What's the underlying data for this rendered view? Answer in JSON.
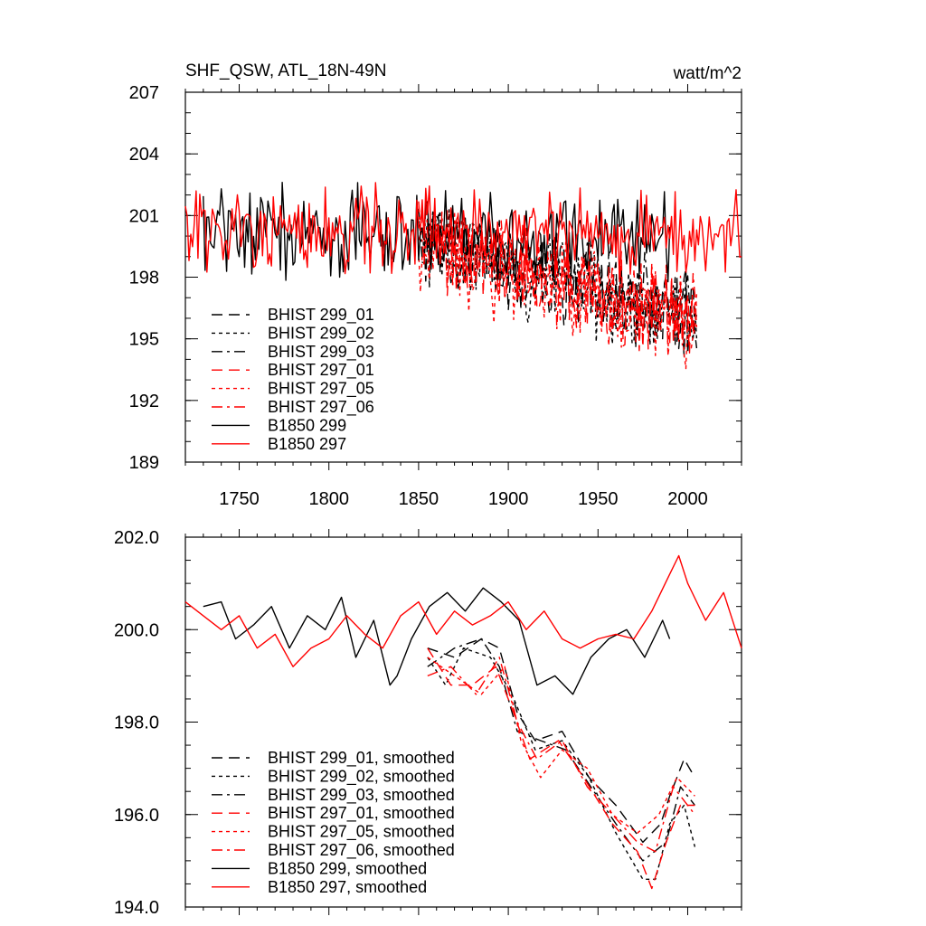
{
  "chart_data": [
    {
      "type": "line",
      "title_left": "SHF_QSW, ATL_18N-49N",
      "title_right": "watt/m^2",
      "xlim": [
        1720,
        2030
      ],
      "ylim": [
        189,
        207
      ],
      "x_ticks": [
        1750,
        1800,
        1850,
        1900,
        1950,
        2000
      ],
      "y_ticks": [
        189,
        192,
        195,
        198,
        201,
        204,
        207
      ],
      "y_tick_labels": [
        "189",
        "192",
        "195",
        "198",
        "201",
        "204",
        "207"
      ],
      "legend_position": "lower-left",
      "series": [
        {
          "name": "BHIST 299_01",
          "color": "#000000",
          "dash": "longdash",
          "x_start": 1850,
          "x_end": 2005,
          "mean_start": 199.8,
          "mean_end": 196.0,
          "amplitude": 2.2
        },
        {
          "name": "BHIST 299_02",
          "color": "#000000",
          "dash": "shortdash",
          "x_start": 1850,
          "x_end": 2005,
          "mean_start": 199.6,
          "mean_end": 195.8,
          "amplitude": 2.3
        },
        {
          "name": "BHIST 299_03",
          "color": "#000000",
          "dash": "dashdot",
          "x_start": 1850,
          "x_end": 2005,
          "mean_start": 199.9,
          "mean_end": 196.2,
          "amplitude": 2.1
        },
        {
          "name": "BHIST 297_01",
          "color": "#ff0000",
          "dash": "longdash",
          "x_start": 1850,
          "x_end": 2005,
          "mean_start": 199.5,
          "mean_end": 195.9,
          "amplitude": 2.3
        },
        {
          "name": "BHIST 297_05",
          "color": "#ff0000",
          "dash": "shortdash",
          "x_start": 1850,
          "x_end": 2005,
          "mean_start": 199.4,
          "mean_end": 195.7,
          "amplitude": 2.4
        },
        {
          "name": "BHIST 297_06",
          "color": "#ff0000",
          "dash": "dashdot",
          "x_start": 1850,
          "x_end": 2005,
          "mean_start": 199.7,
          "mean_end": 196.0,
          "amplitude": 2.2
        },
        {
          "name": "B1850 299",
          "color": "#000000",
          "dash": "solid",
          "x_start": 1730,
          "x_end": 1990,
          "mean_start": 200.3,
          "mean_end": 199.9,
          "amplitude": 2.3
        },
        {
          "name": "B1850 297",
          "color": "#ff0000",
          "dash": "solid",
          "x_start": 1720,
          "x_end": 2030,
          "mean_start": 200.3,
          "mean_end": 200.2,
          "amplitude": 2.2
        }
      ]
    },
    {
      "type": "line",
      "xlim": [
        1720,
        2030
      ],
      "ylim": [
        194,
        202
      ],
      "x_ticks": [
        1750,
        1800,
        1850,
        1900,
        1950,
        2000
      ],
      "y_ticks": [
        194,
        196,
        198,
        200,
        202
      ],
      "y_tick_labels": [
        "194.0",
        "196.0",
        "198.0",
        "200.0",
        "202.0"
      ],
      "legend_position": "lower-left",
      "series": [
        {
          "name": "BHIST 299_01, smoothed",
          "color": "#000000",
          "dash": "longdash",
          "points": [
            [
              1855,
              199.6
            ],
            [
              1870,
              199.4
            ],
            [
              1885,
              199.8
            ],
            [
              1895,
              199.6
            ],
            [
              1905,
              198.2
            ],
            [
              1915,
              197.6
            ],
            [
              1930,
              197.8
            ],
            [
              1945,
              196.8
            ],
            [
              1960,
              196.2
            ],
            [
              1975,
              195.4
            ],
            [
              1985,
              195.8
            ],
            [
              1990,
              196.4
            ],
            [
              1998,
              197.2
            ],
            [
              2004,
              196.8
            ]
          ]
        },
        {
          "name": "BHIST 299_02, smoothed",
          "color": "#000000",
          "dash": "shortdash",
          "points": [
            [
              1855,
              199.4
            ],
            [
              1865,
              198.8
            ],
            [
              1875,
              199.6
            ],
            [
              1890,
              199.4
            ],
            [
              1902,
              198.6
            ],
            [
              1915,
              197.4
            ],
            [
              1930,
              197.6
            ],
            [
              1945,
              196.8
            ],
            [
              1960,
              195.6
            ],
            [
              1975,
              194.6
            ],
            [
              1982,
              194.6
            ],
            [
              1990,
              195.8
            ],
            [
              1998,
              196.2
            ],
            [
              2004,
              195.3
            ]
          ]
        },
        {
          "name": "BHIST 299_03, smoothed",
          "color": "#000000",
          "dash": "dashdot",
          "points": [
            [
              1855,
              199.2
            ],
            [
              1870,
              199.6
            ],
            [
              1885,
              199.8
            ],
            [
              1895,
              199.2
            ],
            [
              1905,
              197.8
            ],
            [
              1918,
              197.6
            ],
            [
              1932,
              197.4
            ],
            [
              1946,
              196.6
            ],
            [
              1960,
              195.8
            ],
            [
              1975,
              195.0
            ],
            [
              1988,
              195.4
            ],
            [
              1996,
              196.6
            ],
            [
              2004,
              196.2
            ]
          ]
        },
        {
          "name": "BHIST 297_01, smoothed",
          "color": "#ff0000",
          "dash": "longdash",
          "points": [
            [
              1855,
              199.6
            ],
            [
              1868,
              198.8
            ],
            [
              1880,
              198.8
            ],
            [
              1893,
              199.2
            ],
            [
              1903,
              198.2
            ],
            [
              1912,
              197.2
            ],
            [
              1928,
              197.6
            ],
            [
              1942,
              196.8
            ],
            [
              1958,
              195.8
            ],
            [
              1972,
              195.2
            ],
            [
              1980,
              194.4
            ],
            [
              1988,
              195.4
            ],
            [
              1996,
              196.2
            ],
            [
              2004,
              196.2
            ]
          ]
        },
        {
          "name": "BHIST 297_05, smoothed",
          "color": "#ff0000",
          "dash": "shortdash",
          "points": [
            [
              1855,
              199.4
            ],
            [
              1870,
              199.0
            ],
            [
              1885,
              198.6
            ],
            [
              1898,
              199.2
            ],
            [
              1907,
              197.6
            ],
            [
              1918,
              196.8
            ],
            [
              1930,
              197.4
            ],
            [
              1944,
              197.0
            ],
            [
              1958,
              196.0
            ],
            [
              1972,
              195.6
            ],
            [
              1984,
              196.0
            ],
            [
              1994,
              196.8
            ],
            [
              2004,
              196.4
            ]
          ]
        },
        {
          "name": "BHIST 297_06, smoothed",
          "color": "#ff0000",
          "dash": "dashdot",
          "points": [
            [
              1855,
              199.0
            ],
            [
              1868,
              199.2
            ],
            [
              1882,
              198.6
            ],
            [
              1895,
              199.4
            ],
            [
              1905,
              198.0
            ],
            [
              1916,
              197.2
            ],
            [
              1930,
              197.6
            ],
            [
              1944,
              196.6
            ],
            [
              1958,
              196.0
            ],
            [
              1972,
              195.4
            ],
            [
              1982,
              195.2
            ],
            [
              1992,
              196.6
            ],
            [
              2004,
              196.0
            ]
          ]
        },
        {
          "name": "B1850 299, smoothed",
          "color": "#000000",
          "dash": "solid",
          "points": [
            [
              1730,
              200.5
            ],
            [
              1740,
              200.6
            ],
            [
              1748,
              199.8
            ],
            [
              1758,
              200.1
            ],
            [
              1768,
              200.5
            ],
            [
              1778,
              199.6
            ],
            [
              1788,
              200.3
            ],
            [
              1798,
              200.0
            ],
            [
              1807,
              200.7
            ],
            [
              1815,
              199.4
            ],
            [
              1825,
              200.2
            ],
            [
              1834,
              198.8
            ],
            [
              1838,
              199.0
            ],
            [
              1846,
              199.8
            ],
            [
              1856,
              200.5
            ],
            [
              1866,
              200.8
            ],
            [
              1876,
              200.4
            ],
            [
              1886,
              200.9
            ],
            [
              1896,
              200.6
            ],
            [
              1906,
              200.2
            ],
            [
              1916,
              198.8
            ],
            [
              1926,
              199.0
            ],
            [
              1936,
              198.6
            ],
            [
              1946,
              199.4
            ],
            [
              1956,
              199.8
            ],
            [
              1966,
              200.0
            ],
            [
              1976,
              199.4
            ],
            [
              1986,
              200.2
            ],
            [
              1990,
              199.8
            ]
          ]
        },
        {
          "name": "B1850 297, smoothed",
          "color": "#ff0000",
          "dash": "solid",
          "points": [
            [
              1720,
              200.6
            ],
            [
              1730,
              200.3
            ],
            [
              1740,
              200.0
            ],
            [
              1750,
              200.3
            ],
            [
              1760,
              199.6
            ],
            [
              1770,
              199.9
            ],
            [
              1780,
              199.2
            ],
            [
              1790,
              199.6
            ],
            [
              1800,
              199.8
            ],
            [
              1810,
              200.3
            ],
            [
              1820,
              199.9
            ],
            [
              1830,
              199.6
            ],
            [
              1840,
              200.3
            ],
            [
              1850,
              200.6
            ],
            [
              1860,
              199.9
            ],
            [
              1870,
              200.4
            ],
            [
              1880,
              200.1
            ],
            [
              1890,
              200.3
            ],
            [
              1900,
              200.6
            ],
            [
              1910,
              200.0
            ],
            [
              1920,
              200.4
            ],
            [
              1930,
              199.8
            ],
            [
              1940,
              199.6
            ],
            [
              1950,
              199.8
            ],
            [
              1960,
              199.9
            ],
            [
              1970,
              199.8
            ],
            [
              1980,
              200.4
            ],
            [
              1990,
              201.2
            ],
            [
              1995,
              201.6
            ],
            [
              2000,
              201.0
            ],
            [
              2010,
              200.2
            ],
            [
              2020,
              200.8
            ],
            [
              2030,
              199.6
            ]
          ]
        }
      ]
    }
  ]
}
